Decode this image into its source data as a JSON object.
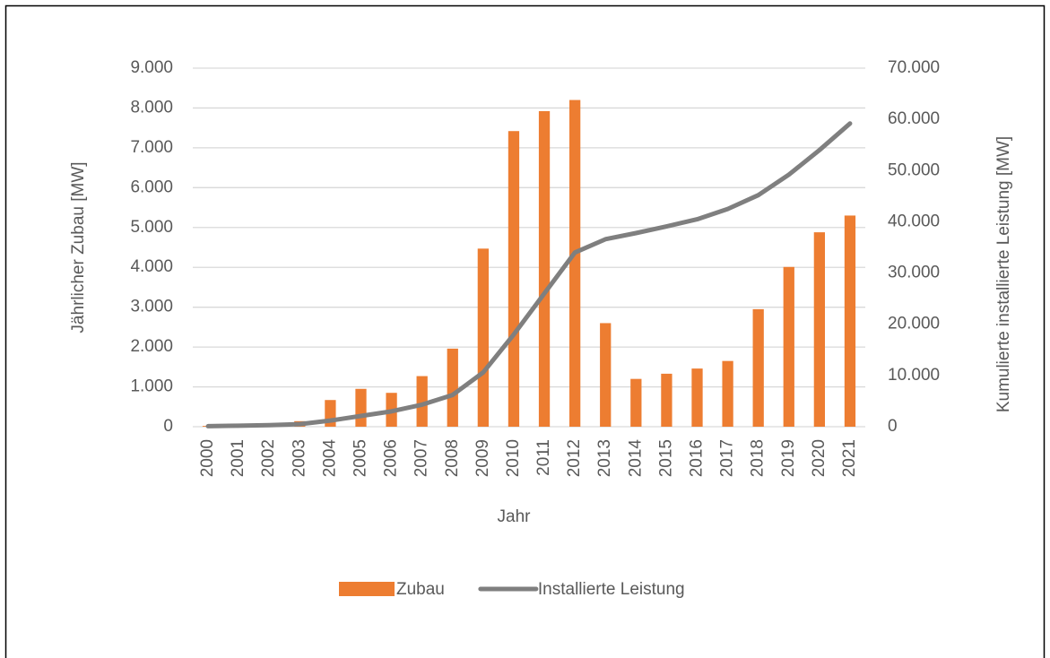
{
  "chart_data": {
    "type": "bar_line",
    "x_label": "Jahr",
    "y_label": "Jährlicher Zubau [MW]",
    "y2_label": "Kumulierte installierte Leistung [MW]",
    "categories": [
      "2000",
      "2001",
      "2002",
      "2003",
      "2004",
      "2005",
      "2006",
      "2007",
      "2008",
      "2009",
      "2010",
      "2011",
      "2012",
      "2013",
      "2014",
      "2015",
      "2016",
      "2017",
      "2018",
      "2019",
      "2020",
      "2021"
    ],
    "series": [
      {
        "name": "Zubau",
        "type": "bar",
        "color": "#ed7d31",
        "axis": "y",
        "values": [
          20,
          10,
          80,
          140,
          670,
          950,
          850,
          1270,
          1960,
          4470,
          7420,
          7920,
          8200,
          2600,
          1200,
          1330,
          1460,
          1650,
          2950,
          4010,
          4880,
          5300
        ]
      },
      {
        "name": "Installierte Leistung",
        "type": "line",
        "color": "#7f7f7f",
        "axis": "y2",
        "values": [
          100,
          200,
          300,
          500,
          1200,
          2100,
          3000,
          4300,
          6200,
          10600,
          18000,
          26000,
          34000,
          36600,
          37800,
          39100,
          40500,
          42500,
          45200,
          49200,
          54000,
          59200
        ]
      }
    ],
    "ylim": [
      0,
      9000
    ],
    "yticks": [
      0,
      {
        "value": 1000,
        "label": "1.000"
      },
      {
        "value": 2000,
        "label": "2.000"
      },
      {
        "value": 3000,
        "label": "3.000"
      },
      {
        "value": 4000,
        "label": "4.000"
      },
      {
        "value": 5000,
        "label": "5.000"
      },
      {
        "value": 6000,
        "label": "6.000"
      },
      {
        "value": 7000,
        "label": "7.000"
      },
      {
        "value": 8000,
        "label": "8.000"
      },
      {
        "value": 9000,
        "label": "9.000"
      }
    ],
    "y2lim": [
      0,
      70000
    ],
    "y2ticks": [
      0,
      {
        "value": 10000,
        "label": "10.000"
      },
      {
        "value": 20000,
        "label": "20.000"
      },
      {
        "value": 30000,
        "label": "30.000"
      },
      {
        "value": 40000,
        "label": "40.000"
      },
      {
        "value": 50000,
        "label": "50.000"
      },
      {
        "value": 60000,
        "label": "60.000"
      },
      {
        "value": 70000,
        "label": "70.000"
      }
    ],
    "grid": true,
    "legend": "bottom"
  }
}
